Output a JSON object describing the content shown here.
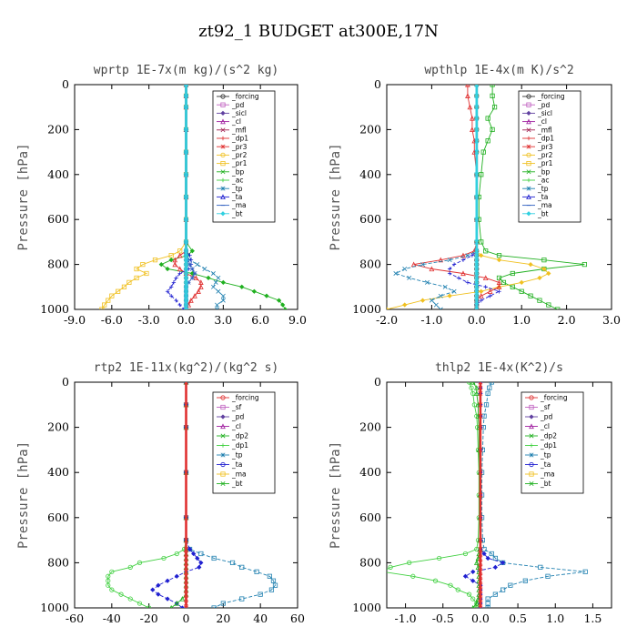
{
  "title": "zt92_1  BUDGET at300E,17N",
  "chart_data": [
    {
      "type": "line",
      "title": "wprtp   1E-7x(m kg)/(s^2 kg)",
      "ylabel": "Pressure [hPa]",
      "xlim": [
        -9,
        9
      ],
      "ylim": [
        1000,
        0
      ],
      "xticks": [
        "-9.0",
        "-6.0",
        "-3.0",
        "0.0",
        "3.0",
        "6.0",
        "9.0"
      ],
      "yticks": [
        "0",
        "200",
        "400",
        "600",
        "800",
        "1000"
      ],
      "y": [
        0,
        50,
        100,
        200,
        300,
        400,
        500,
        600,
        700,
        740,
        760,
        780,
        800,
        820,
        840,
        860,
        880,
        900,
        920,
        940,
        960,
        980,
        1000
      ],
      "legend": [
        "_forcing",
        "_pd",
        "_sicl",
        "_cl",
        "_mfl",
        "_dp1",
        "_pr3",
        "_pr2",
        "_pr1",
        "_bp",
        "_ac",
        "_tp",
        "_ta",
        "_ma",
        "_bt"
      ],
      "series": [
        {
          "name": "_forcing",
          "color": "#303030",
          "values": [
            0,
            0,
            0,
            0,
            0,
            0,
            0,
            0,
            0,
            0,
            0,
            0,
            0,
            0,
            0,
            0,
            0,
            0,
            0,
            0,
            0,
            0,
            0
          ]
        },
        {
          "name": "_pr2",
          "color": "#f0c020",
          "values": [
            0,
            0,
            0,
            0,
            0,
            0,
            0,
            0,
            0,
            -0.5,
            -1.2,
            -2.5,
            -3.5,
            -4.0,
            -3.2,
            -4.0,
            -4.6,
            -5.0,
            -5.5,
            -6.0,
            -6.3,
            -6.6,
            -6.8
          ]
        },
        {
          "name": "_bp",
          "color": "#20b020",
          "values": [
            0,
            0,
            0,
            0,
            0,
            0,
            0,
            0,
            0,
            0.5,
            0.1,
            -1.2,
            -2.0,
            -1.5,
            0.5,
            1.8,
            3.0,
            4.5,
            5.5,
            6.5,
            7.5,
            7.8,
            8.0
          ]
        },
        {
          "name": "_dp1",
          "color": "#e03030",
          "values": [
            0,
            0,
            0,
            0,
            0,
            0,
            0,
            0,
            0,
            0,
            -0.5,
            -0.9,
            -0.9,
            -0.5,
            0,
            0.8,
            1.2,
            1.2,
            1.0,
            0.7,
            0.4,
            0.2,
            0
          ]
        },
        {
          "name": "_tp",
          "color": "#2080b0",
          "values": [
            0,
            0,
            0,
            0,
            0,
            0,
            0,
            0,
            0,
            0,
            0,
            0.3,
            0.9,
            1.5,
            2.2,
            2.6,
            2.4,
            2.2,
            2.6,
            3.0,
            3.0,
            2.5,
            2.5
          ]
        },
        {
          "name": "_ta",
          "color": "#2020d0",
          "values": [
            0,
            0,
            0,
            0,
            0,
            0,
            0,
            0,
            0,
            0,
            0.3,
            0.4,
            0.4,
            0.2,
            -0.5,
            -0.8,
            -1.0,
            -1.2,
            -1.5,
            -1.2,
            -0.8,
            -0.5,
            -0.2
          ]
        },
        {
          "name": "_ma",
          "color": "#3060c0",
          "values": [
            0,
            0,
            0,
            0,
            0,
            0,
            0,
            0,
            0,
            0,
            0,
            0.1,
            0.3,
            0.5,
            0.7,
            0.5,
            0.2,
            0,
            0,
            0,
            0,
            0,
            0
          ]
        },
        {
          "name": "_bt",
          "color": "#30d0e0",
          "values": [
            0,
            0,
            0,
            0,
            0,
            0,
            0,
            0,
            0,
            0,
            0,
            0,
            0,
            0,
            0,
            0,
            0,
            0,
            0,
            0,
            0,
            0,
            0
          ]
        }
      ]
    },
    {
      "type": "line",
      "title": "wpthlp   1E-4x(m K)/s^2",
      "ylabel": "Pressure [hPa]",
      "xlim": [
        -2,
        3
      ],
      "ylim": [
        1000,
        0
      ],
      "xticks": [
        "-2.0",
        "-1.0",
        "0.0",
        "1.0",
        "2.0",
        "3.0"
      ],
      "yticks": [
        "0",
        "200",
        "400",
        "600",
        "800",
        "1000"
      ],
      "y": [
        0,
        50,
        100,
        150,
        200,
        250,
        300,
        400,
        500,
        600,
        700,
        740,
        760,
        780,
        800,
        820,
        840,
        860,
        880,
        900,
        920,
        940,
        960,
        980,
        1000
      ],
      "legend": [
        "_forcing",
        "_pd",
        "_sicl",
        "_cl",
        "_mfl",
        "_dp1",
        "_pr3",
        "_pr2",
        "_pr1",
        "_bp",
        "_ac",
        "_tp",
        "_ta",
        "_ma",
        "_bt"
      ],
      "series": [
        {
          "name": "_forcing",
          "color": "#303030",
          "values": [
            0,
            0,
            0,
            0,
            0,
            0,
            0,
            0,
            0,
            0,
            0,
            0,
            0,
            0,
            0,
            0,
            0,
            0,
            0,
            0,
            0,
            0,
            0,
            0,
            0
          ]
        },
        {
          "name": "_bp",
          "color": "#20b020",
          "values": [
            0.35,
            0.35,
            0.4,
            0.25,
            0.35,
            0.25,
            0.15,
            0.1,
            0.05,
            0.05,
            0.1,
            0.2,
            0.5,
            1.5,
            2.4,
            1.5,
            0.8,
            0.5,
            0.6,
            0.8,
            1.0,
            1.2,
            1.4,
            1.6,
            1.8
          ]
        },
        {
          "name": "_pr2",
          "color": "#f0c020",
          "values": [
            0,
            0,
            0,
            0,
            0,
            0,
            0,
            0,
            0,
            0,
            0,
            0,
            0.1,
            0.5,
            1.2,
            1.5,
            1.6,
            1.4,
            1.0,
            0.5,
            0.1,
            -0.6,
            -1.2,
            -1.6,
            -2.0
          ]
        },
        {
          "name": "_dp1",
          "color": "#e03030",
          "values": [
            -0.2,
            -0.2,
            -0.15,
            -0.1,
            -0.1,
            -0.05,
            -0.05,
            0,
            0,
            0,
            0,
            -0.05,
            -0.3,
            -0.8,
            -1.4,
            -1.0,
            -0.3,
            0.2,
            0.5,
            0.5,
            0.3,
            0.1,
            0,
            0,
            0
          ]
        },
        {
          "name": "_tp",
          "color": "#2080b0",
          "values": [
            0,
            0,
            0,
            0,
            0,
            0,
            0,
            0,
            0,
            0,
            0,
            0,
            -0.2,
            -0.6,
            -1.2,
            -1.6,
            -1.8,
            -1.5,
            -1.1,
            -0.7,
            -0.5,
            -0.8,
            -1.0,
            -0.9,
            -0.8
          ]
        },
        {
          "name": "_ta",
          "color": "#2020d0",
          "values": [
            0,
            0,
            0,
            0,
            0,
            0,
            0,
            0,
            0,
            0,
            0,
            0,
            -0.1,
            -0.3,
            -0.5,
            -0.6,
            -0.6,
            -0.4,
            -0.2,
            0.2,
            0.5,
            0.3,
            0.1,
            0,
            0
          ]
        },
        {
          "name": "_bt",
          "color": "#30d0e0",
          "values": [
            0,
            0,
            0,
            0,
            0,
            0,
            0,
            0,
            0,
            0,
            0,
            0,
            0,
            0,
            0,
            0,
            0,
            0,
            0,
            0,
            0,
            0,
            0,
            0,
            0
          ]
        }
      ]
    },
    {
      "type": "line",
      "title": "rtp2   1E-11x(kg^2)/(kg^2 s)",
      "ylabel": "Pressure [hPa]",
      "xlim": [
        -60,
        60
      ],
      "ylim": [
        1000,
        0
      ],
      "xticks": [
        "-60",
        "-40",
        "-20",
        "0",
        "20",
        "40",
        "60"
      ],
      "yticks": [
        "0",
        "200",
        "400",
        "600",
        "800",
        "1000"
      ],
      "y": [
        0,
        100,
        200,
        400,
        600,
        700,
        740,
        760,
        780,
        800,
        820,
        840,
        860,
        880,
        900,
        920,
        940,
        960,
        980,
        1000
      ],
      "legend": [
        "_forcing",
        "_sf",
        "_pd",
        "_cl",
        "_dp2",
        "_dp1",
        "_tp",
        "_ta",
        "_ma",
        "_bt"
      ],
      "series": [
        {
          "name": "_dp1",
          "color": "#40d040",
          "values": [
            0,
            0,
            0,
            0,
            0,
            0,
            -1,
            -5,
            -12,
            -25,
            -30,
            -40,
            -42,
            -42,
            -42,
            -40,
            -35,
            -30,
            -25,
            -20
          ]
        },
        {
          "name": "_tp",
          "color": "#2080b0",
          "values": [
            0,
            0,
            0,
            0,
            0,
            0,
            2,
            8,
            15,
            25,
            30,
            38,
            45,
            47,
            48,
            46,
            40,
            30,
            20,
            15
          ]
        },
        {
          "name": "_ta",
          "color": "#2020d0",
          "values": [
            0,
            0,
            0,
            0,
            0,
            0,
            2,
            4,
            6,
            8,
            7,
            0,
            -5,
            -10,
            -15,
            -18,
            -15,
            -10,
            -5,
            -2
          ]
        },
        {
          "name": "_dp2",
          "color": "#20b020",
          "values": [
            0,
            0,
            0,
            0,
            0,
            0,
            0,
            0,
            0,
            0,
            0,
            0,
            0,
            0,
            0,
            0,
            0,
            -2,
            -5,
            -8
          ]
        },
        {
          "name": "_forcing",
          "color": "#e03030",
          "values": [
            0,
            0,
            0,
            0,
            0,
            0,
            0,
            0,
            0,
            0,
            0,
            0,
            0,
            0,
            0,
            0,
            0,
            0,
            0,
            0
          ]
        }
      ]
    },
    {
      "type": "line",
      "title": "thlp2   1E-4x(K^2)/s",
      "ylabel": "Pressure [hPa]",
      "xlim": [
        -1.25,
        1.75
      ],
      "ylim": [
        1000,
        0
      ],
      "xticks": [
        "-1.0",
        "-0.5",
        "0.0",
        "0.5",
        "1.0",
        "1.5"
      ],
      "yticks": [
        "0",
        "200",
        "400",
        "600",
        "800",
        "1000"
      ],
      "y": [
        0,
        25,
        50,
        100,
        150,
        200,
        300,
        400,
        500,
        600,
        700,
        740,
        760,
        780,
        800,
        820,
        840,
        860,
        880,
        900,
        920,
        940,
        960,
        980,
        1000
      ],
      "legend": [
        "_forcing",
        "_sf",
        "_pd",
        "_cl",
        "_dp2",
        "_dp1",
        "_tp",
        "_ta",
        "_ma",
        "_bt"
      ],
      "series": [
        {
          "name": "_dp1",
          "color": "#40d040",
          "values": [
            -0.15,
            -0.12,
            -0.1,
            -0.08,
            -0.05,
            -0.04,
            -0.03,
            -0.02,
            -0.02,
            -0.02,
            -0.03,
            -0.05,
            -0.2,
            -0.55,
            -0.95,
            -1.2,
            -1.3,
            -0.9,
            -0.6,
            -0.4,
            -0.3,
            -0.15,
            -0.1,
            -0.05,
            -0.05
          ]
        },
        {
          "name": "_tp",
          "color": "#2080b0",
          "values": [
            0.15,
            0.12,
            0.1,
            0.08,
            0.05,
            0.04,
            0.03,
            0.02,
            0.02,
            0.02,
            0.03,
            0.05,
            0.15,
            0.2,
            0.3,
            0.8,
            1.4,
            0.9,
            0.6,
            0.4,
            0.3,
            0.2,
            0.1,
            0.1,
            0.1
          ]
        },
        {
          "name": "_ta",
          "color": "#2020d0",
          "values": [
            0,
            0,
            0,
            0,
            0,
            0,
            0,
            0,
            0,
            0,
            0,
            0,
            0.05,
            0.1,
            0.3,
            0.2,
            -0.1,
            -0.2,
            -0.1,
            0,
            0,
            0,
            0,
            0,
            0
          ]
        },
        {
          "name": "_dp2",
          "color": "#20b020",
          "values": [
            -0.1,
            -0.05,
            -0.05,
            -0.03,
            -0.03,
            -0.02,
            -0.02,
            -0.01,
            -0.01,
            -0.01,
            -0.01,
            -0.01,
            -0.02,
            -0.03,
            -0.05,
            -0.03,
            -0.02,
            -0.02,
            -0.02,
            -0.02,
            -0.02,
            -0.02,
            -0.03,
            -0.05,
            -0.1
          ]
        },
        {
          "name": "_forcing",
          "color": "#e03030",
          "values": [
            0,
            0,
            0,
            0,
            0,
            0,
            0,
            0,
            0,
            0,
            0,
            0,
            0,
            0,
            0,
            0,
            0,
            0,
            0,
            0,
            0,
            0,
            0,
            0,
            0
          ]
        }
      ]
    }
  ]
}
